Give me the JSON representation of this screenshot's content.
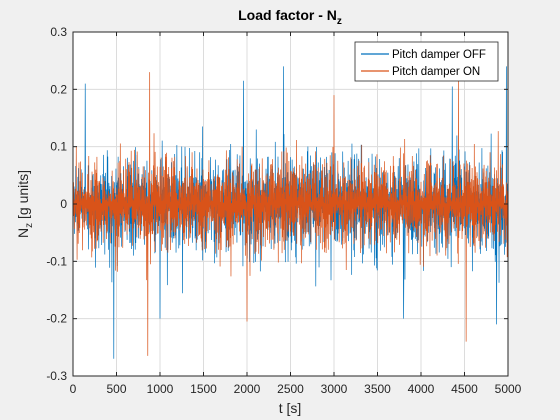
{
  "chart_data": {
    "type": "line",
    "title": "Load factor - N",
    "title_sub": "z",
    "xlabel": "t [s]",
    "ylabel_main": "N",
    "ylabel_sub": "z",
    "ylabel_rest": " [g units]",
    "xlim": [
      0,
      5000
    ],
    "ylim": [
      -0.3,
      0.3
    ],
    "xticks": [
      0,
      500,
      1000,
      1500,
      2000,
      2500,
      3000,
      3500,
      4000,
      4500,
      5000
    ],
    "xtick_labels": [
      "0",
      "500",
      "1000",
      "1500",
      "2000",
      "2500",
      "3000",
      "3500",
      "4000",
      "4500",
      "5000"
    ],
    "yticks": [
      0.3,
      0.2,
      0.1,
      0,
      -0.1,
      -0.2,
      -0.3
    ],
    "ytick_labels": [
      "0.3",
      "0.2",
      "0.1",
      "0",
      "-0.1",
      "-0.2",
      "-0.3"
    ],
    "grid": true,
    "legend_position": "top-right",
    "series": [
      {
        "name": "Pitch damper OFF",
        "color": "#0072BD",
        "amplitude_typical": 0.13,
        "peaks": [
          {
            "t": 140,
            "v": 0.21
          },
          {
            "t": 470,
            "v": -0.27
          },
          {
            "t": 1000,
            "v": -0.2
          },
          {
            "t": 1960,
            "v": 0.215
          },
          {
            "t": 2420,
            "v": 0.24
          },
          {
            "t": 3800,
            "v": -0.2
          },
          {
            "t": 4360,
            "v": 0.205
          },
          {
            "t": 4870,
            "v": -0.21
          },
          {
            "t": 4980,
            "v": 0.24
          }
        ]
      },
      {
        "name": "Pitch damper ON",
        "color": "#D95319",
        "amplitude_typical": 0.12,
        "peaks": [
          {
            "t": 860,
            "v": -0.265
          },
          {
            "t": 880,
            "v": 0.23
          },
          {
            "t": 4430,
            "v": 0.22
          },
          {
            "t": 4520,
            "v": -0.24
          },
          {
            "t": 2000,
            "v": -0.205
          },
          {
            "t": 3000,
            "v": 0.19
          }
        ]
      }
    ]
  }
}
